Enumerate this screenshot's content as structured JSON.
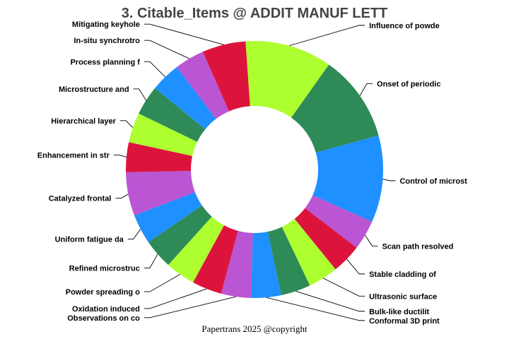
{
  "chart_data": {
    "type": "pie",
    "variant": "donut",
    "title": "3. Citable_Items @ ADDIT MANUF LETT",
    "footer": "Papertrans 2025 @copyright",
    "start_angle_deg": -4,
    "slices": [
      {
        "label": "Influence of powde",
        "value": 1.6,
        "color": "#adff2f"
      },
      {
        "label": "Onset of periodic",
        "value": 1.6,
        "color": "#2e8b57"
      },
      {
        "label": "Control of microst",
        "value": 1.6,
        "color": "#1e90ff"
      },
      {
        "label": "Scan path resolved",
        "value": 0.55,
        "color": "#ba55d3"
      },
      {
        "label": "Stable cladding of",
        "value": 0.55,
        "color": "#dc143c"
      },
      {
        "label": "Ultrasonic surface",
        "value": 0.55,
        "color": "#adff2f"
      },
      {
        "label": "Bulk-like ductilit",
        "value": 0.55,
        "color": "#2e8b57"
      },
      {
        "label": "Conformal 3D print",
        "value": 0.55,
        "color": "#1e90ff"
      },
      {
        "label": "Observations on co",
        "value": 0.55,
        "color": "#ba55d3"
      },
      {
        "label": "Oxidation induced",
        "value": 0.55,
        "color": "#dc143c"
      },
      {
        "label": "Powder spreading o",
        "value": 0.55,
        "color": "#adff2f"
      },
      {
        "label": "Refined microstruc",
        "value": 0.55,
        "color": "#2e8b57"
      },
      {
        "label": "Uniform fatigue da",
        "value": 0.55,
        "color": "#1e90ff"
      },
      {
        "label": "Catalyzed frontal",
        "value": 0.8,
        "color": "#ba55d3"
      },
      {
        "label": "Enhancement in str",
        "value": 0.55,
        "color": "#dc143c"
      },
      {
        "label": "Hierarchical layer",
        "value": 0.55,
        "color": "#adff2f"
      },
      {
        "label": "Microstructure and",
        "value": 0.55,
        "color": "#2e8b57"
      },
      {
        "label": "Process planning f",
        "value": 0.55,
        "color": "#1e90ff"
      },
      {
        "label": "In-situ synchrotro",
        "value": 0.55,
        "color": "#ba55d3"
      },
      {
        "label": "Mitigating keyhole",
        "value": 0.8,
        "color": "#dc143c"
      }
    ]
  }
}
